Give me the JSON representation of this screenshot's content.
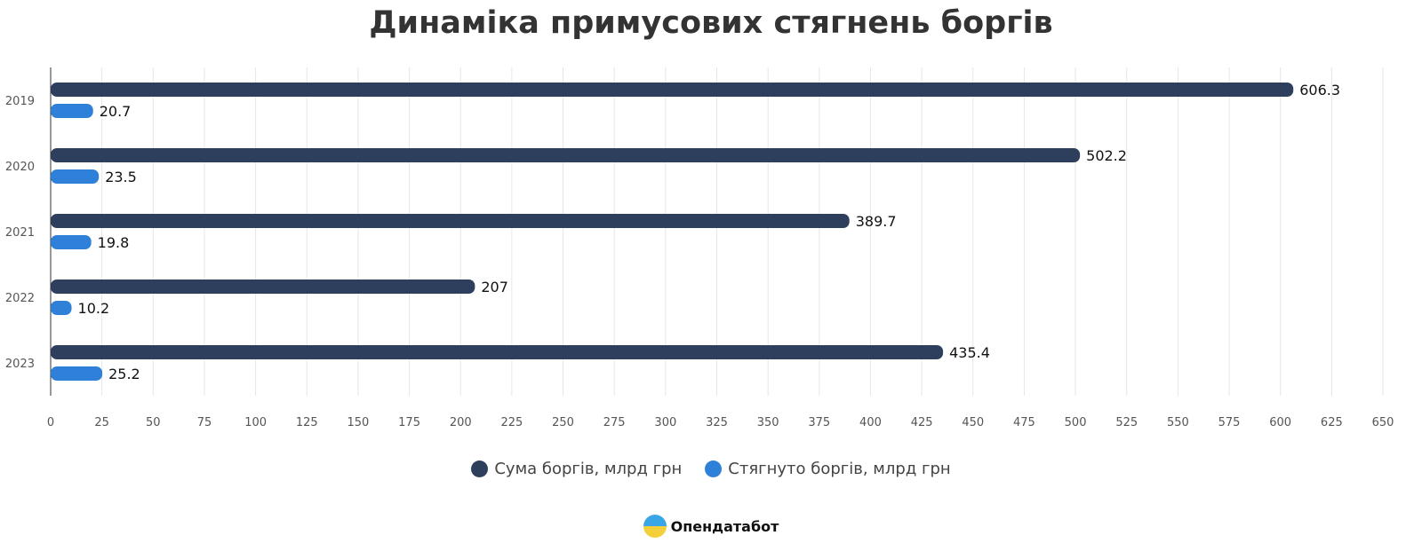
{
  "chart_data": {
    "type": "bar",
    "orientation": "horizontal",
    "title": "Динаміка примусових стягнень боргів",
    "categories": [
      "2019",
      "2020",
      "2021",
      "2022",
      "2023"
    ],
    "series": [
      {
        "name": "Сума боргів, млрд грн",
        "color": "#2e3f5e",
        "values": [
          606.3,
          502.2,
          389.7,
          207,
          435.4
        ]
      },
      {
        "name": "Стягнуто боргів, млрд грн",
        "color": "#2f80d9",
        "values": [
          20.7,
          23.5,
          19.8,
          10.2,
          25.2
        ]
      }
    ],
    "xlim": [
      0,
      650
    ],
    "xticks": [
      0,
      25,
      50,
      75,
      100,
      125,
      150,
      175,
      200,
      225,
      250,
      275,
      300,
      325,
      350,
      375,
      400,
      425,
      450,
      475,
      500,
      525,
      550,
      575,
      600,
      625,
      650
    ],
    "grid": true,
    "legend": "bottom"
  },
  "brand": "Опендатабот"
}
